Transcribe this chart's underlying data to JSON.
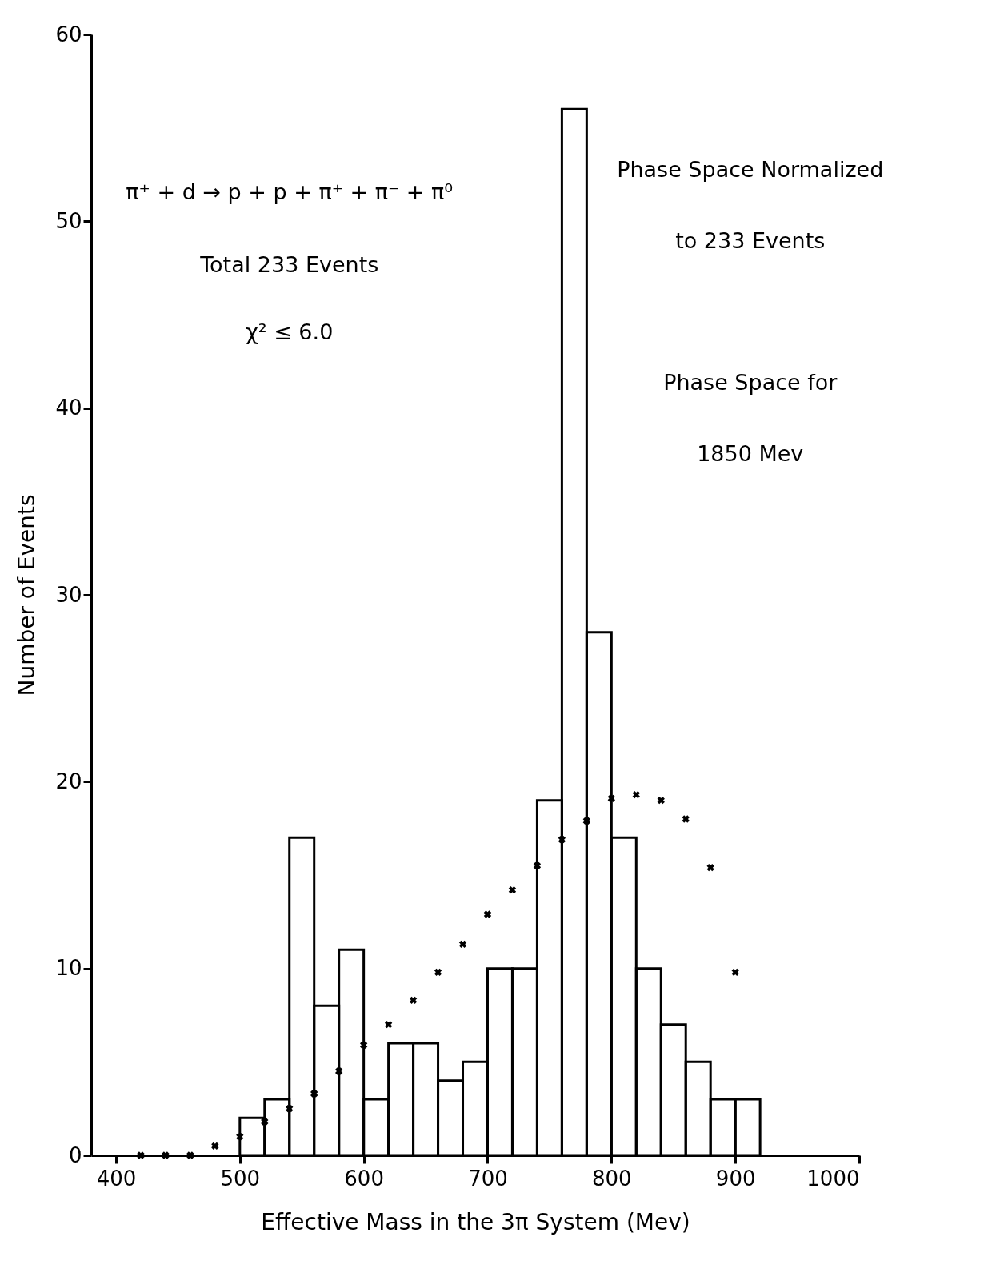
{
  "chart_data": {
    "type": "histogram",
    "xlabel": "Effective Mass in the 3π System (Mev)",
    "ylabel": "Number of Events",
    "annotations": [
      "π⁺ + d → p + p + π⁺ + π⁻ + π⁰",
      "Total 233 Events",
      "χ² ≤ 6.0",
      "Phase Space Normalized",
      "to 233 Events",
      "Phase Space for",
      "1850 Mev"
    ],
    "series": [
      {
        "color": "#000000",
        "bins": [
          500,
          520,
          540,
          560,
          580,
          600,
          620,
          640,
          660,
          680,
          700,
          720,
          740,
          760,
          780,
          800,
          820,
          840,
          860,
          880,
          900,
          920
        ],
        "values": [
          2,
          3,
          17,
          8,
          11,
          3,
          6,
          6,
          4,
          5,
          10,
          10,
          19,
          56,
          28,
          17,
          10,
          7,
          5,
          3,
          3
        ]
      },
      {
        "type": "scatter",
        "color": "#000000",
        "x": [
          420,
          440,
          460,
          480,
          500,
          520,
          540,
          560,
          580,
          600,
          620,
          640,
          660,
          680,
          700,
          720,
          740,
          760,
          780,
          800,
          820,
          840,
          860,
          880,
          900
        ],
        "values": [
          0,
          0,
          0,
          0.5,
          1,
          1.8,
          2.5,
          3.3,
          4.5,
          5.9,
          7,
          8.3,
          9.8,
          11.3,
          12.9,
          14.2,
          15.5,
          16.9,
          17.9,
          19.1,
          19.3,
          19,
          18,
          15.4,
          9.8
        ]
      }
    ],
    "marker": "cross",
    "grid": false,
    "xlim": [
      380,
      1000
    ],
    "xticks": [
      400,
      500,
      600,
      700,
      800,
      900,
      {
        "value": 1000,
        "label": "1000"
      }
    ],
    "ylim": [
      0,
      60
    ],
    "yticks": [
      0,
      10,
      20,
      30,
      40,
      50,
      60
    ]
  }
}
